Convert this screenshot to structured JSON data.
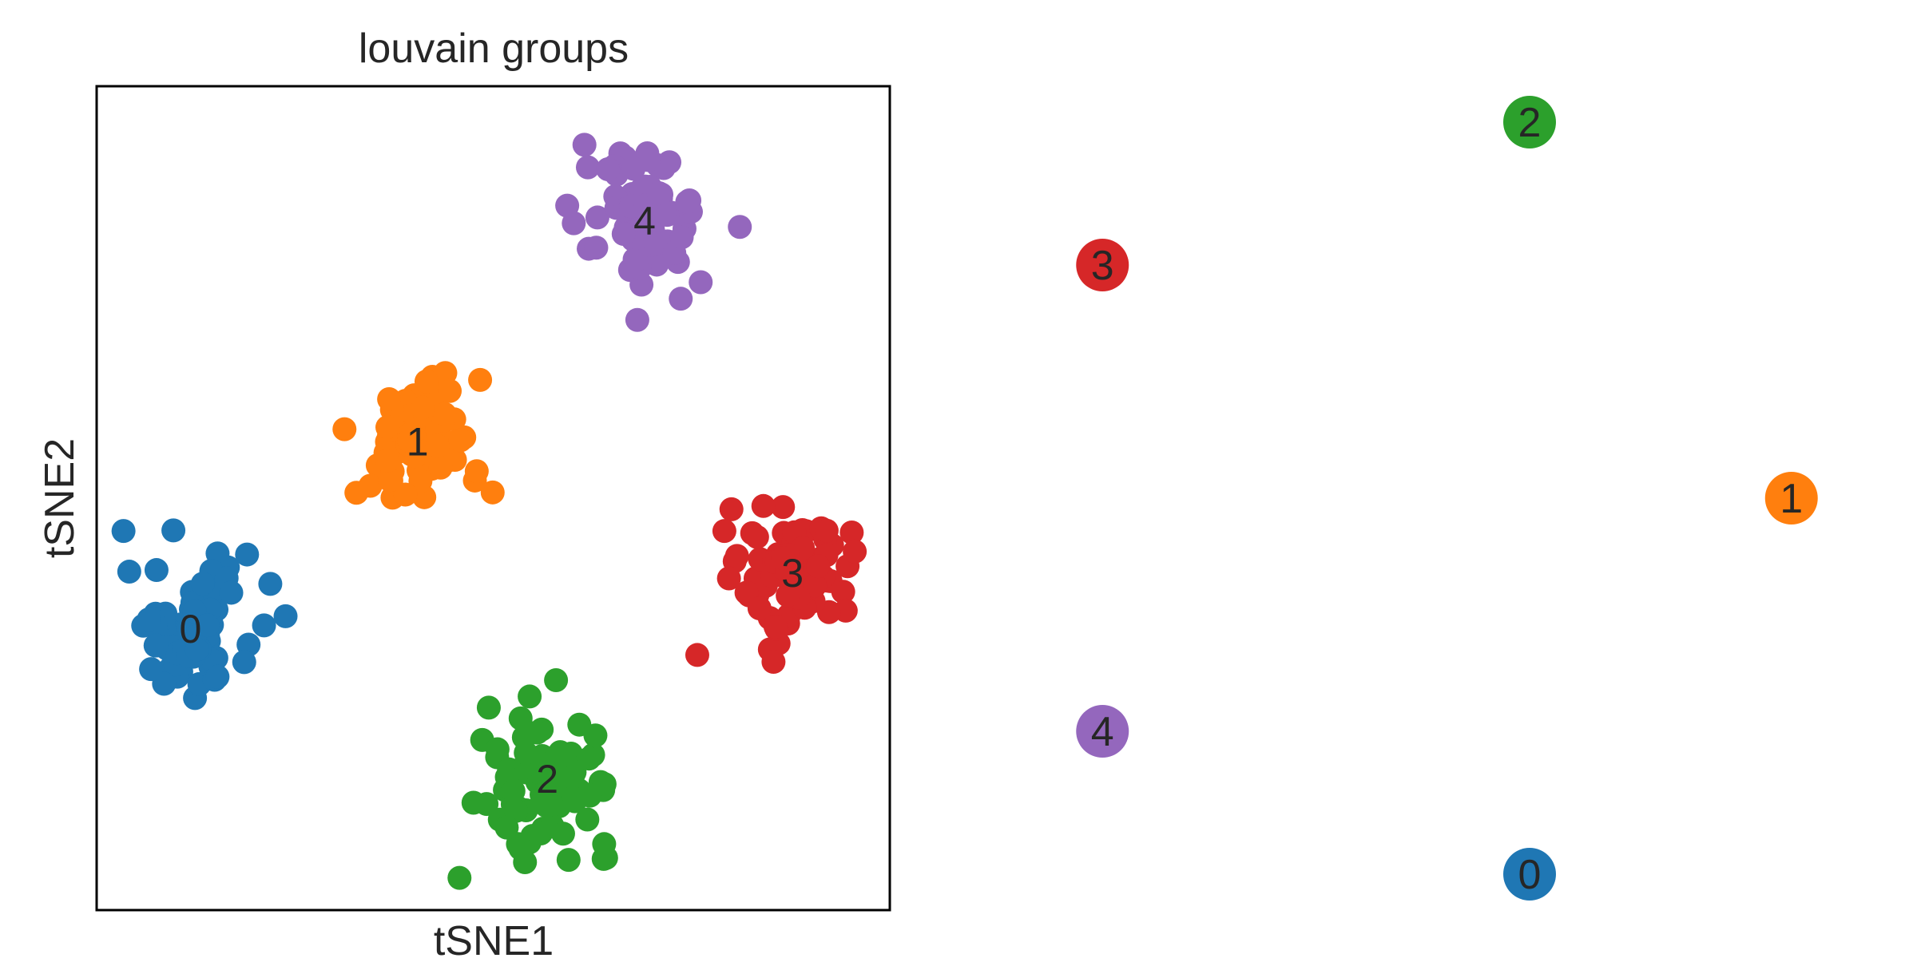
{
  "chart_data": [
    {
      "type": "scatter",
      "title": "louvain groups",
      "xlabel": "tSNE1",
      "ylabel": "tSNE2",
      "xlim": [
        -11,
        11
      ],
      "ylim": [
        -11,
        11
      ],
      "grid": false,
      "legend": "on data",
      "series": [
        {
          "name": "0",
          "color": "#1f77b4",
          "center": [
            -8.4,
            -3.5
          ],
          "spread": 1.2,
          "n": 80
        },
        {
          "name": "1",
          "color": "#ff7f0e",
          "center": [
            -2.1,
            1.5
          ],
          "spread": 1.2,
          "n": 80
        },
        {
          "name": "2",
          "color": "#2ca02c",
          "center": [
            1.5,
            -7.5
          ],
          "spread": 1.2,
          "n": 80
        },
        {
          "name": "3",
          "color": "#d62728",
          "center": [
            8.3,
            -2.0
          ],
          "spread": 1.2,
          "n": 80
        },
        {
          "name": "4",
          "color": "#9467bd",
          "center": [
            4.2,
            7.4
          ],
          "spread": 1.2,
          "n": 80
        }
      ]
    },
    {
      "type": "graph",
      "nodes": [
        {
          "label": "0",
          "color": "#1f77b4",
          "x": 0.0,
          "y": -1.0
        },
        {
          "label": "1",
          "color": "#ff7f0e",
          "x": 0.95,
          "y": 0.0
        },
        {
          "label": "2",
          "color": "#2ca02c",
          "x": 0.0,
          "y": 1.0
        },
        {
          "label": "3",
          "color": "#d62728",
          "x": -1.55,
          "y": 0.62
        },
        {
          "label": "4",
          "color": "#9467bd",
          "x": -1.55,
          "y": -0.62
        }
      ]
    }
  ]
}
